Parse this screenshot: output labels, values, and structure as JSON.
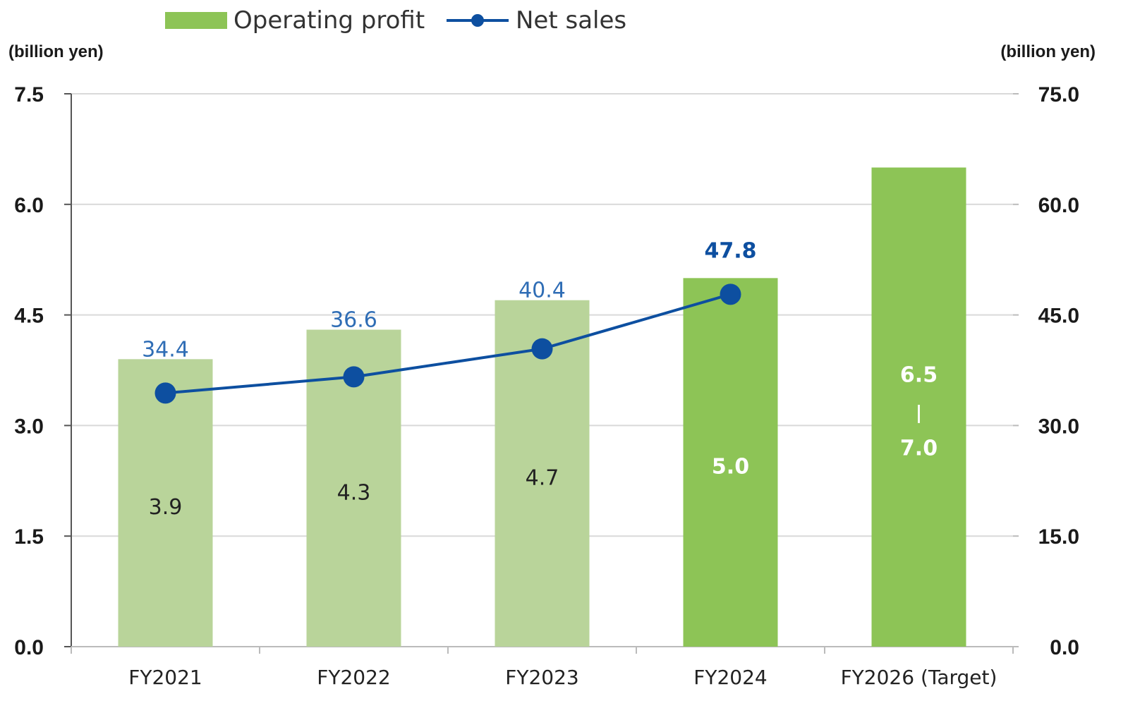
{
  "chart_data": {
    "type": "bar+line",
    "categories": [
      "FY2021",
      "FY2022",
      "FY2023",
      "FY2024",
      "FY2026 (Target)"
    ],
    "series": [
      {
        "name": "Operating profit",
        "kind": "bar",
        "axis": "left",
        "values": [
          3.9,
          4.3,
          4.7,
          5.0,
          6.5
        ],
        "labels": [
          "3.9",
          "4.3",
          "4.7",
          "5.0",
          "6.5\n|\n7.0"
        ],
        "target_range": [
          6.5,
          7.0
        ],
        "colors": [
          "#b9d49a",
          "#b9d49a",
          "#b9d49a",
          "#8dc456",
          "#8dc456"
        ]
      },
      {
        "name": "Net sales",
        "kind": "line",
        "axis": "right",
        "values": [
          34.4,
          36.6,
          40.4,
          47.8,
          null
        ],
        "labels": [
          "34.4",
          "36.6",
          "40.4",
          "47.8",
          ""
        ],
        "color": "#0d4fa0"
      }
    ],
    "left_axis": {
      "unit": "(billion yen)",
      "ylim": [
        0,
        7.5
      ],
      "ticks": [
        "0.0",
        "1.5",
        "3.0",
        "4.5",
        "6.0",
        "7.5"
      ]
    },
    "right_axis": {
      "unit": "(billion yen)",
      "ylim": [
        0,
        75
      ],
      "ticks": [
        "0.0",
        "15.0",
        "30.0",
        "45.0",
        "60.0",
        "75.0"
      ]
    },
    "grid": true,
    "legend_position": "top"
  }
}
